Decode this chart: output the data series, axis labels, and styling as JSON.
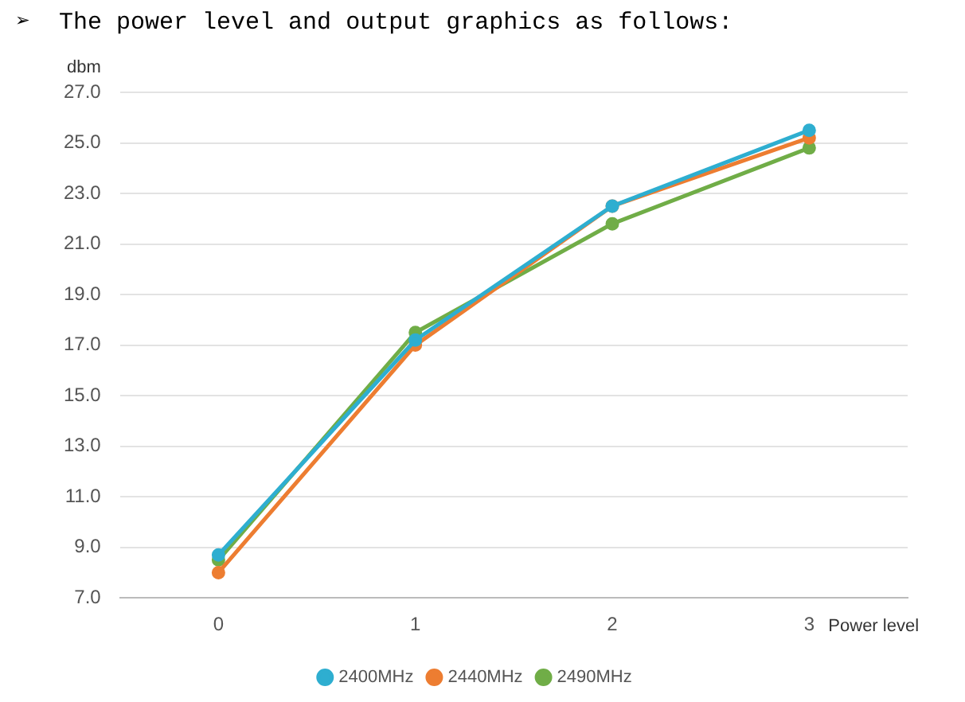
{
  "chart_data": {
    "type": "line",
    "title": "➢  The power level and output graphics as follows:",
    "xlabel": "Power level",
    "ylabel": "dbm",
    "categories": [
      "0",
      "1",
      "2",
      "3"
    ],
    "series": [
      {
        "name": "2400MHz",
        "color": "#2eaed0",
        "values": [
          8.7,
          17.2,
          22.5,
          25.5
        ]
      },
      {
        "name": "2440MHz",
        "color": "#ed7d31",
        "values": [
          8.0,
          17.0,
          22.5,
          25.2
        ]
      },
      {
        "name": "2490MHz",
        "color": "#70ad47",
        "values": [
          8.5,
          17.5,
          21.8,
          24.8
        ]
      }
    ],
    "ylim": [
      7,
      27
    ],
    "yticks": [
      {
        "value": 7,
        "label": "7.0"
      },
      {
        "value": 9,
        "label": "9.0"
      },
      {
        "value": 11,
        "label": "11.0"
      },
      {
        "value": 13,
        "label": "13.0"
      },
      {
        "value": 15,
        "label": "15.0"
      },
      {
        "value": 17,
        "label": "17.0"
      },
      {
        "value": 19,
        "label": "19.0"
      },
      {
        "value": 21,
        "label": "21.0"
      },
      {
        "value": 23,
        "label": "23.0"
      },
      {
        "value": 25,
        "label": "25.0"
      },
      {
        "value": 27,
        "label": "27.0"
      }
    ],
    "grid": "y",
    "legend": "bottom",
    "marker": "circle",
    "line_style": "solid"
  }
}
